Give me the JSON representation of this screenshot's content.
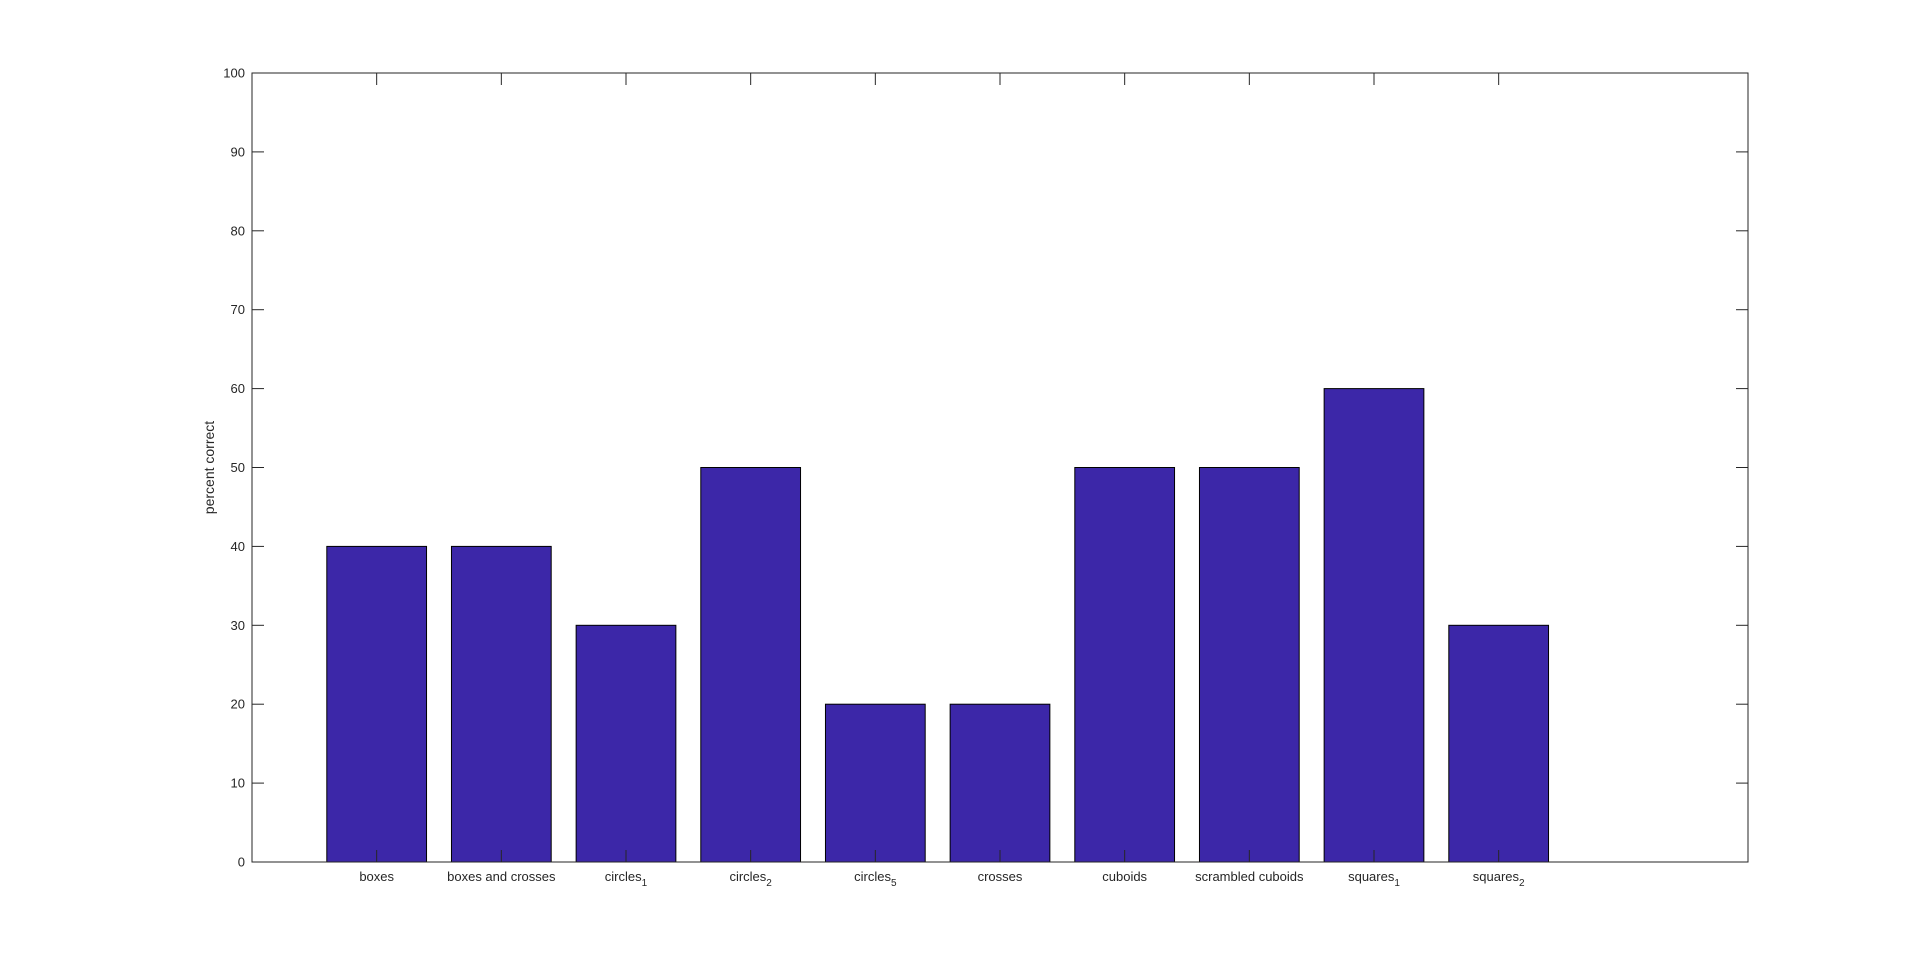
{
  "chart_data": {
    "type": "bar",
    "categories": [
      {
        "label": "boxes",
        "sub": ""
      },
      {
        "label": "boxes and crosses",
        "sub": ""
      },
      {
        "label": "circles",
        "sub": "1"
      },
      {
        "label": "circles",
        "sub": "2"
      },
      {
        "label": "circles",
        "sub": "5"
      },
      {
        "label": "crosses",
        "sub": ""
      },
      {
        "label": "cuboids",
        "sub": ""
      },
      {
        "label": "scrambled cuboids",
        "sub": ""
      },
      {
        "label": "squares",
        "sub": "1"
      },
      {
        "label": "squares",
        "sub": "2"
      }
    ],
    "values": [
      40,
      40,
      30,
      50,
      20,
      20,
      50,
      50,
      60,
      30
    ],
    "ylabel": "percent correct",
    "ylim": [
      0,
      100
    ],
    "yticks": [
      0,
      10,
      20,
      30,
      40,
      50,
      60,
      70,
      80,
      90,
      100
    ],
    "xlim": [
      0,
      12
    ],
    "grid": false,
    "colors": {
      "bar_fill": "#3c27a8",
      "bar_edge": "#000000",
      "axis": "#262626"
    }
  }
}
